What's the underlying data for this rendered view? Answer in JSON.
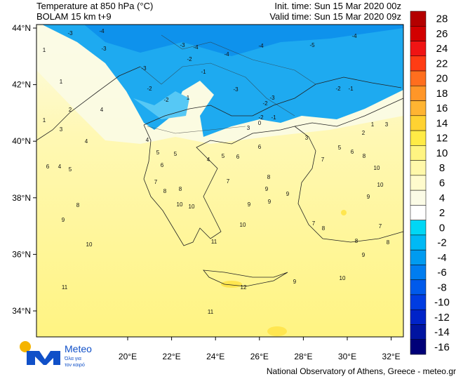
{
  "header": {
    "title": "Temperature at 850 hPa (°C)",
    "model": "BOLAM 15 km t+9",
    "init_time": "Init. time: Sun 15 Mar 2020 00z",
    "valid_time": "Valid time: Sun 15 Mar 2020 09z"
  },
  "map": {
    "lon_ticks": [
      {
        "value": 20,
        "label": "20°E"
      },
      {
        "value": 22,
        "label": "22°E"
      },
      {
        "value": 24,
        "label": "24°E"
      },
      {
        "value": 26,
        "label": "26°E"
      },
      {
        "value": 28,
        "label": "28°E"
      },
      {
        "value": 30,
        "label": "30°E"
      },
      {
        "value": 32,
        "label": "32°E"
      }
    ],
    "lat_ticks": [
      {
        "value": 34,
        "label": "34°N"
      },
      {
        "value": 36,
        "label": "36°N"
      },
      {
        "value": 38,
        "label": "38°N"
      },
      {
        "value": 40,
        "label": "40°N"
      },
      {
        "value": 42,
        "label": "42°N"
      },
      {
        "value": 44,
        "label": "44°N"
      }
    ],
    "contour_labels": [
      -3,
      -4,
      -3,
      -3,
      -3,
      -4,
      -2,
      -1,
      -4,
      -3,
      -4,
      -5,
      -4,
      -2,
      -1,
      -2,
      -2,
      1,
      -3,
      -2,
      -2,
      0,
      -1,
      1,
      1,
      2,
      4,
      1,
      3,
      4,
      4,
      5,
      6,
      5,
      4,
      5,
      6,
      6,
      3,
      3,
      2,
      1,
      3,
      5,
      6,
      8,
      7,
      10,
      10,
      9,
      6,
      4,
      5,
      7,
      8,
      8,
      7,
      8,
      9,
      9,
      9,
      8,
      9,
      10,
      10,
      9,
      7,
      8,
      7,
      8,
      8,
      9,
      10,
      10,
      11,
      10,
      9,
      11,
      12,
      11
    ]
  },
  "colorbar": [
    {
      "value": 28,
      "color": "#b40000"
    },
    {
      "value": 26,
      "color": "#d20000"
    },
    {
      "value": 24,
      "color": "#f01414"
    },
    {
      "value": 22,
      "color": "#ff3c14"
    },
    {
      "value": 20,
      "color": "#ff6e1e"
    },
    {
      "value": 18,
      "color": "#ff9628"
    },
    {
      "value": 16,
      "color": "#ffb432"
    },
    {
      "value": 14,
      "color": "#ffd232"
    },
    {
      "value": 12,
      "color": "#ffeb46"
    },
    {
      "value": 10,
      "color": "#fff482"
    },
    {
      "value": 8,
      "color": "#fff8aa"
    },
    {
      "value": 6,
      "color": "#fffbcd"
    },
    {
      "value": 4,
      "color": "#fbfbe6"
    },
    {
      "value": 2,
      "color": "#ffffff"
    },
    {
      "value": 0,
      "color": "#00d7f5"
    },
    {
      "value": -2,
      "color": "#00b9f5"
    },
    {
      "value": -4,
      "color": "#009bf0"
    },
    {
      "value": -6,
      "color": "#007df0"
    },
    {
      "value": -8,
      "color": "#005aeb"
    },
    {
      "value": -10,
      "color": "#003ce1"
    },
    {
      "value": -12,
      "color": "#0023c8"
    },
    {
      "value": -14,
      "color": "#0014a0"
    },
    {
      "value": -16,
      "color": "#000078"
    }
  ],
  "logo": {
    "name": "Meteo",
    "slogan_1": "Όλα για",
    "slogan_2": "τον καιρό"
  },
  "footer": "National Observatory of Athens, Greece - meteo.gr"
}
